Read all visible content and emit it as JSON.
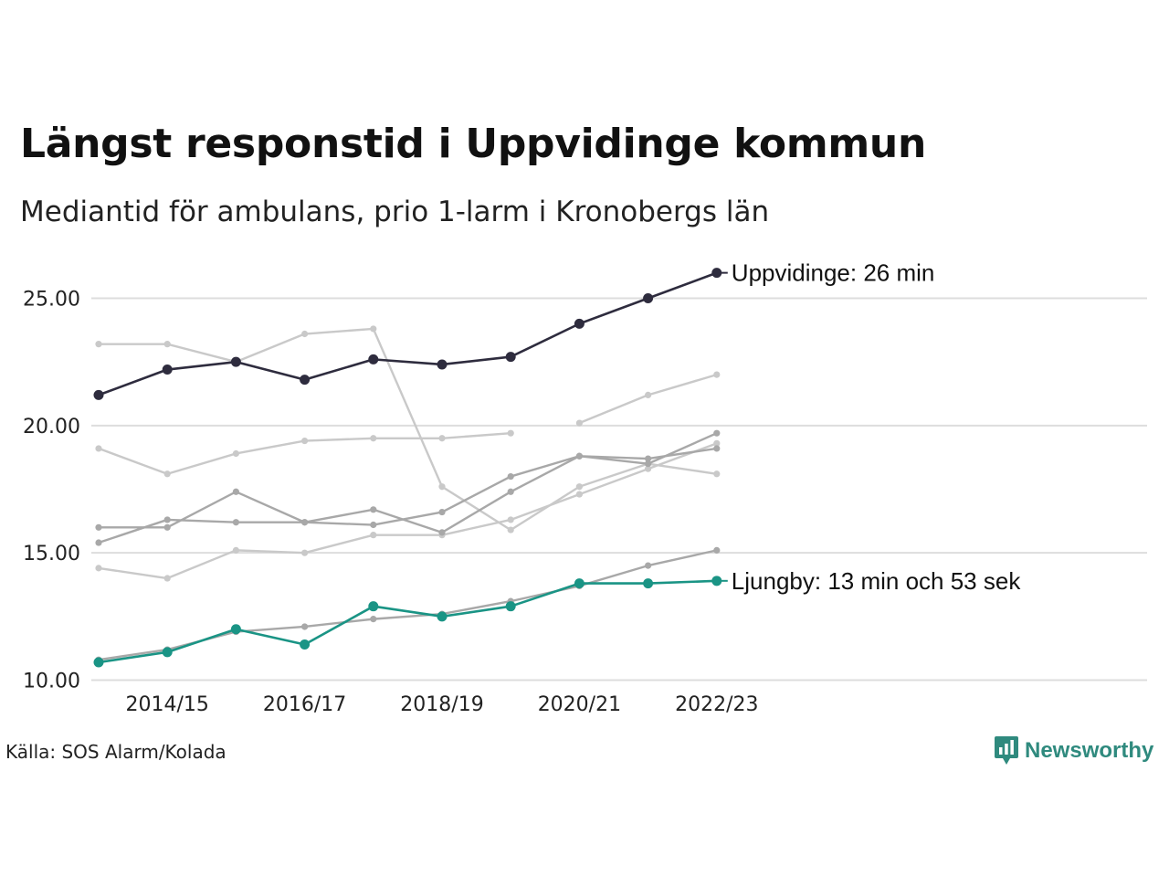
{
  "header": {
    "title": "Längst responstid i Uppvidinge kommun",
    "subtitle": "Mediantid för ambulans, prio 1-larm i Kronobergs län"
  },
  "footer": {
    "source": "Källa: SOS Alarm/Kolada",
    "brand": "Newsworthy",
    "brand_icon": "bar-chart-speech-icon"
  },
  "colors": {
    "highlight_high": "#2e2c3e",
    "highlight_low": "#1a9485",
    "gray_light": "#c9c9c9",
    "gray_mid": "#a8a8a8",
    "grid": "#dddddd"
  },
  "chart_data": {
    "type": "line",
    "title": "Längst responstid i Uppvidinge kommun",
    "subtitle": "Mediantid för ambulans, prio 1-larm i Kronobergs län",
    "xlabel": "",
    "ylabel": "",
    "x": [
      "2013/14",
      "2014/15",
      "2015/16",
      "2016/17",
      "2017/18",
      "2018/19",
      "2019/20",
      "2020/21",
      "2021/22",
      "2022/23"
    ],
    "x_ticks": [
      "2014/15",
      "2016/17",
      "2018/19",
      "2020/21",
      "2022/23"
    ],
    "ylim": [
      10,
      25
    ],
    "y_ticks": [
      "10.00",
      "15.00",
      "20.00",
      "25.00"
    ],
    "grid": true,
    "legend": "none",
    "series": [
      {
        "name": "",
        "color": "gray_light",
        "values": [
          23.2,
          23.2,
          22.5,
          23.6,
          23.8,
          17.6,
          15.9,
          17.6,
          18.5,
          18.1
        ]
      },
      {
        "name": "",
        "color": "gray_light",
        "values": [
          null,
          null,
          null,
          null,
          null,
          null,
          null,
          20.1,
          21.2,
          22.0
        ]
      },
      {
        "name": "",
        "color": "gray_light",
        "values": [
          19.1,
          18.1,
          18.9,
          19.4,
          19.5,
          19.5,
          19.7,
          null,
          null,
          null
        ]
      },
      {
        "name": "",
        "color": "gray_light",
        "values": [
          14.4,
          14.0,
          15.1,
          15.0,
          15.7,
          15.7,
          16.3,
          17.3,
          18.3,
          19.3
        ]
      },
      {
        "name": "",
        "color": "gray_mid",
        "values": [
          16.0,
          16.0,
          17.4,
          16.2,
          16.1,
          16.6,
          18.0,
          18.8,
          18.7,
          19.1
        ]
      },
      {
        "name": "",
        "color": "gray_mid",
        "values": [
          15.4,
          16.3,
          16.2,
          16.2,
          16.7,
          15.8,
          17.4,
          18.8,
          18.5,
          19.7
        ]
      },
      {
        "name": "",
        "color": "gray_mid",
        "values": [
          10.8,
          11.2,
          11.9,
          12.1,
          12.4,
          12.6,
          13.1,
          13.7,
          14.5,
          15.1
        ]
      },
      {
        "name": "Ljungby",
        "color": "highlight_low",
        "values": [
          10.7,
          11.1,
          12.0,
          11.4,
          12.9,
          12.5,
          12.9,
          13.8,
          13.8,
          13.9
        ],
        "label": "Ljungby: 13 min och 53 sek"
      },
      {
        "name": "Uppvidinge",
        "color": "highlight_high",
        "values": [
          21.2,
          22.2,
          22.5,
          21.8,
          22.6,
          22.4,
          22.7,
          24.0,
          25.0,
          26.0
        ],
        "label": "Uppvidinge: 26 min"
      }
    ]
  }
}
